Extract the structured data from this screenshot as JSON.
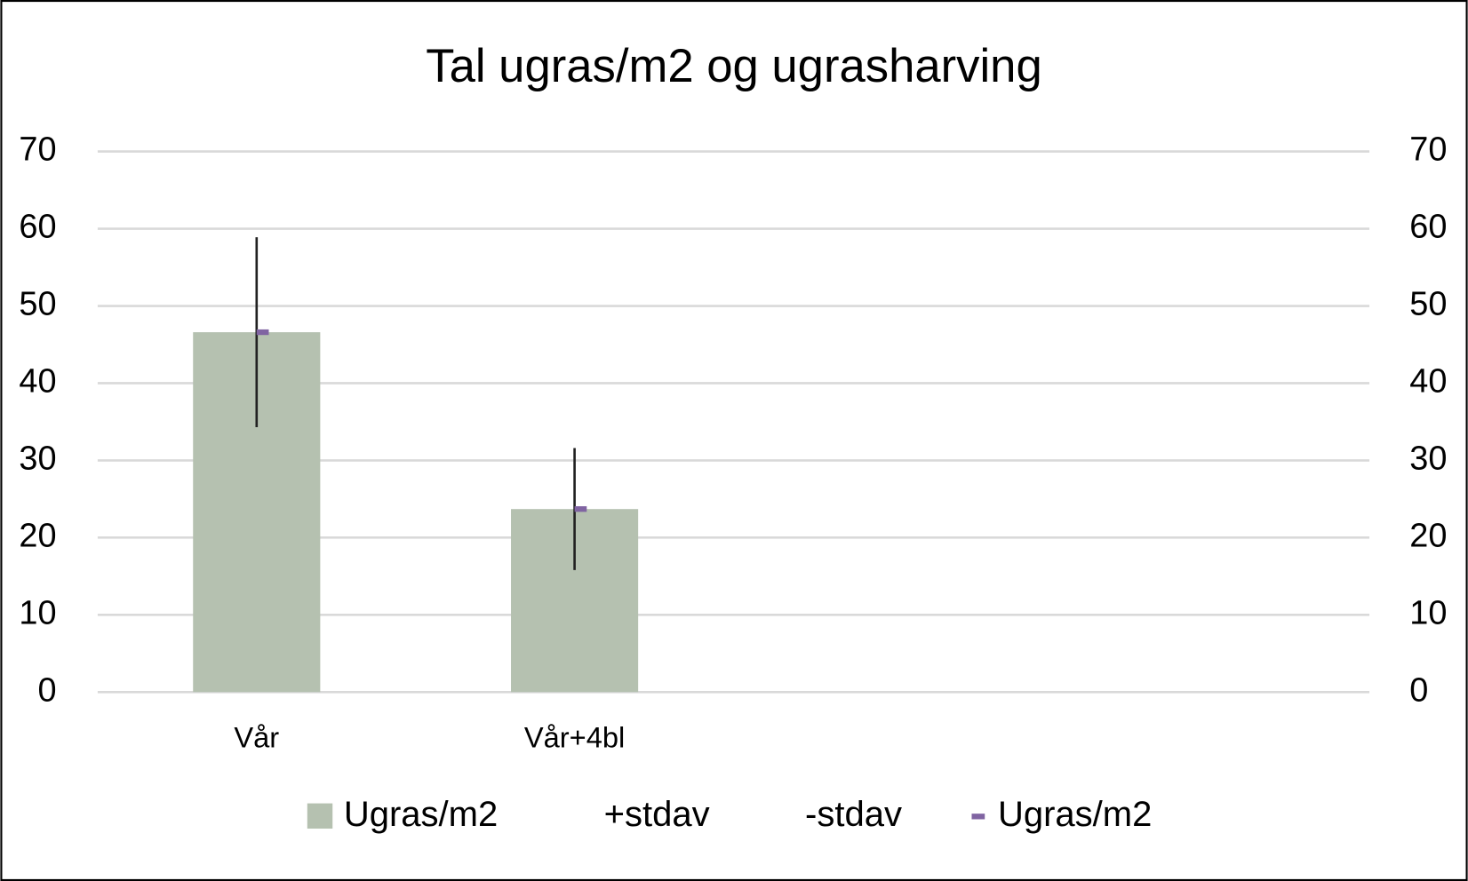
{
  "chart_data": {
    "type": "bar",
    "title": "Tal ugras/m2 og ugrasharving",
    "categories": [
      "Vår",
      "Vår+4bl",
      null,
      null
    ],
    "series": [
      {
        "name": "Ugras/m2",
        "type": "bar",
        "color": "#b5c1b0",
        "values": [
          46.6,
          23.7,
          null,
          null
        ]
      },
      {
        "name": "+stdav",
        "type": "high-low",
        "values": [
          58.9,
          31.6,
          null,
          null
        ]
      },
      {
        "name": "-stdav",
        "type": "high-low",
        "values": [
          34.3,
          15.8,
          null,
          null
        ]
      },
      {
        "name": "Ugras/m2",
        "type": "dash",
        "axis": "y2",
        "color": "#8064a2",
        "values": [
          46.6,
          23.7,
          null,
          null
        ]
      }
    ],
    "ylim": [
      0,
      70
    ],
    "yticks": [
      0,
      10,
      20,
      30,
      40,
      50,
      60,
      70
    ],
    "y2lim": [
      0,
      70
    ],
    "y2ticks": [
      0,
      10,
      20,
      30,
      40,
      50,
      60,
      70
    ],
    "grid": true,
    "legend": "bottom"
  }
}
